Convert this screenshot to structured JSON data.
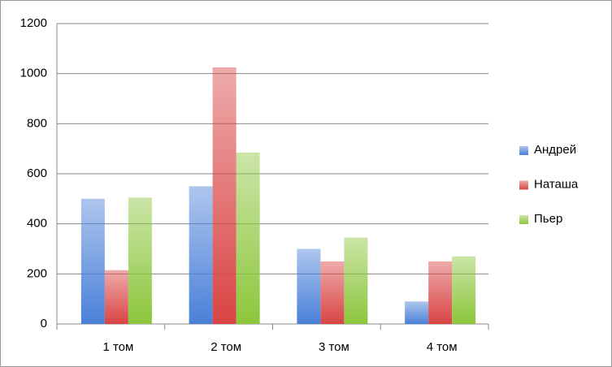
{
  "chart_data": {
    "type": "bar",
    "categories": [
      "1 том",
      "2 том",
      "3 том",
      "4 том"
    ],
    "series": [
      {
        "name": "Андрей",
        "color": "#4a80d8",
        "values": [
          500,
          550,
          300,
          90
        ]
      },
      {
        "name": "Наташа",
        "color": "#d94444",
        "values": [
          215,
          1025,
          250,
          250
        ]
      },
      {
        "name": "Пьер",
        "color": "#8cc63c",
        "values": [
          505,
          685,
          345,
          270
        ]
      }
    ],
    "ylim": [
      0,
      1200
    ],
    "yticks": [
      0,
      200,
      400,
      600,
      800,
      1000,
      1200
    ],
    "grid": true,
    "legend": "right"
  }
}
